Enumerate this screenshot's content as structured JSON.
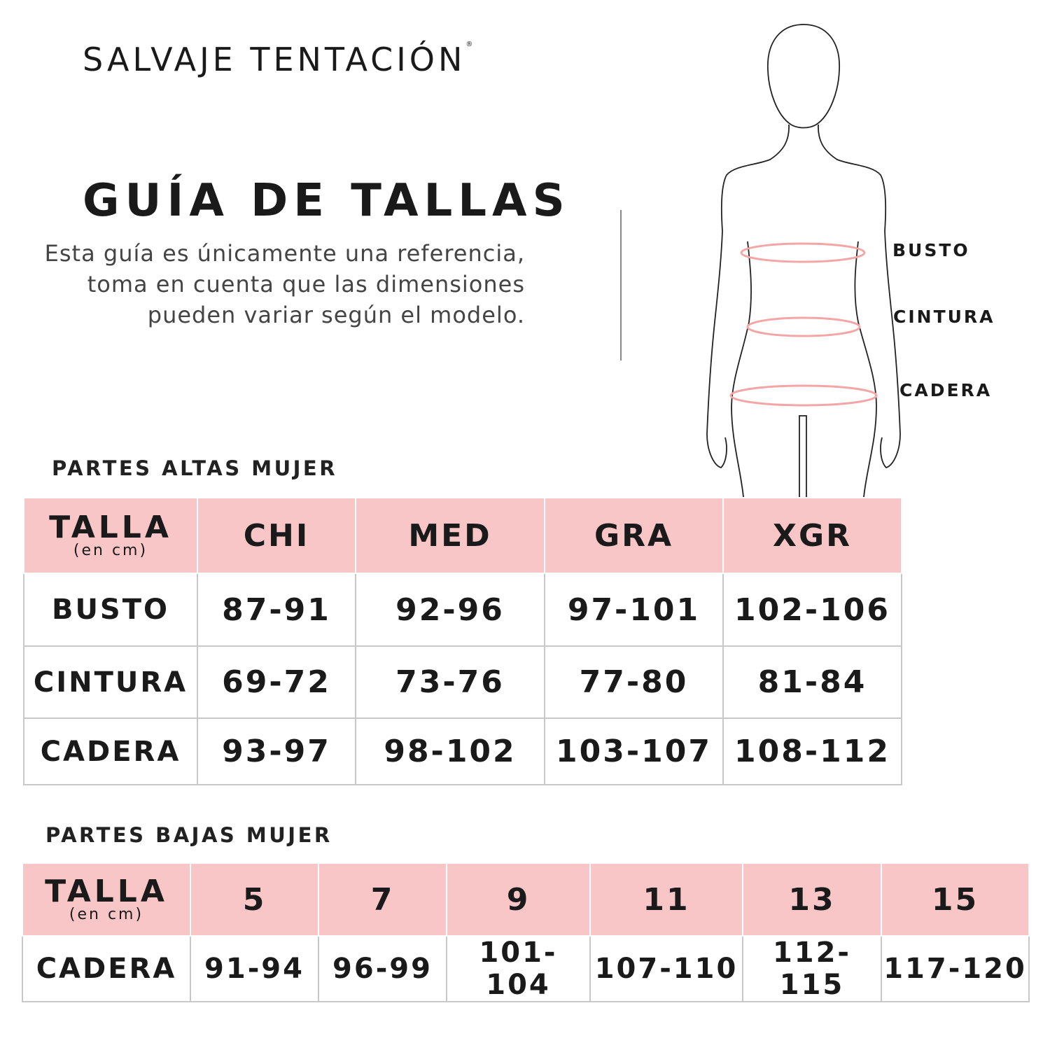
{
  "brand": {
    "name": "SALVAJE TENTACIÓN",
    "mark": "®"
  },
  "header": {
    "title": "GUÍA DE TALLAS",
    "description": "Esta guía es únicamente una referencia, toma en cuenta que las dimensiones pueden variar según el modelo."
  },
  "figure": {
    "labels": [
      "BUSTO",
      "CINTURA",
      "CADERA"
    ],
    "accent": "#f4a6a6"
  },
  "colors": {
    "header_bg": "#f8c6c6",
    "border": "#c8c8c8"
  },
  "upper": {
    "section": "PARTES ALTAS MUJER",
    "talla": "TALLA",
    "unit": "(en cm)",
    "sizes": [
      "CHI",
      "MED",
      "GRA",
      "XGR"
    ],
    "rows": [
      {
        "label": "BUSTO",
        "values": [
          "87-91",
          "92-96",
          "97-101",
          "102-106"
        ]
      },
      {
        "label": "CINTURA",
        "values": [
          "69-72",
          "73-76",
          "77-80",
          "81-84"
        ]
      },
      {
        "label": "CADERA",
        "values": [
          "93-97",
          "98-102",
          "103-107",
          "108-112"
        ]
      }
    ]
  },
  "lower": {
    "section": "PARTES BAJAS MUJER",
    "talla": "TALLA",
    "unit": "(en cm)",
    "sizes": [
      "5",
      "7",
      "9",
      "11",
      "13",
      "15"
    ],
    "rows": [
      {
        "label": "CADERA",
        "values": [
          "91-94",
          "96-99",
          "101-104",
          "107-110",
          "112-115",
          "117-120"
        ]
      }
    ]
  }
}
